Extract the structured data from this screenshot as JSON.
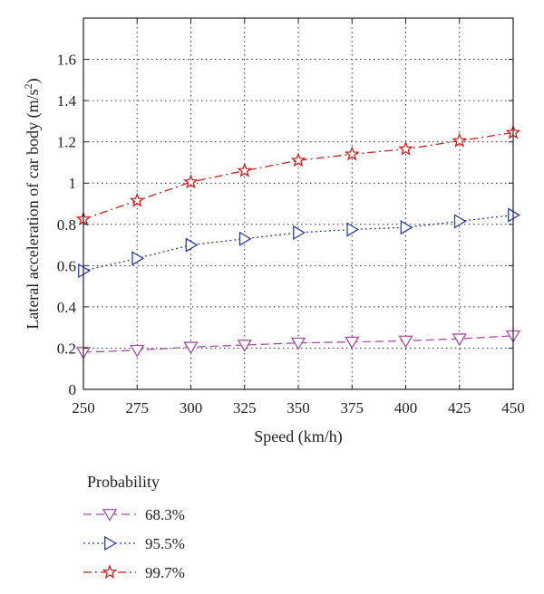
{
  "chart_data": {
    "type": "line",
    "xlabel": "Speed (km/h)",
    "ylabel_main": "Lateral acceleration of car body (m/s",
    "ylabel_sup": "2",
    "ylabel_end": ")",
    "x": [
      250,
      275,
      300,
      325,
      350,
      375,
      400,
      425,
      450
    ],
    "xlim": [
      250,
      450
    ],
    "ylim": [
      0,
      1.8
    ],
    "xticks": [
      "250",
      "275",
      "300",
      "325",
      "350",
      "375",
      "400",
      "425",
      "450"
    ],
    "yticks": [
      "0",
      "0.2",
      "0.4",
      "0.6",
      "0.8",
      "1",
      "1.2",
      "1.4",
      "1.6"
    ],
    "grid": true,
    "legend_title": "Probability",
    "legend_position": "bottom-left, below plot",
    "series": [
      {
        "name": "68.3%",
        "values": [
          0.18,
          0.19,
          0.205,
          0.215,
          0.225,
          0.23,
          0.235,
          0.245,
          0.26
        ],
        "color": "#a64ca6",
        "marker": "triangle-down",
        "dash": "dashed"
      },
      {
        "name": "95.5%",
        "values": [
          0.575,
          0.635,
          0.7,
          0.73,
          0.76,
          0.775,
          0.785,
          0.815,
          0.845
        ],
        "color": "#2b3f9e",
        "marker": "triangle-right",
        "dash": "dotted"
      },
      {
        "name": "99.7%",
        "values": [
          0.825,
          0.915,
          1.005,
          1.06,
          1.11,
          1.14,
          1.165,
          1.205,
          1.245
        ],
        "color": "#cc1f1f",
        "marker": "star",
        "dash": "dash-dot"
      }
    ]
  }
}
